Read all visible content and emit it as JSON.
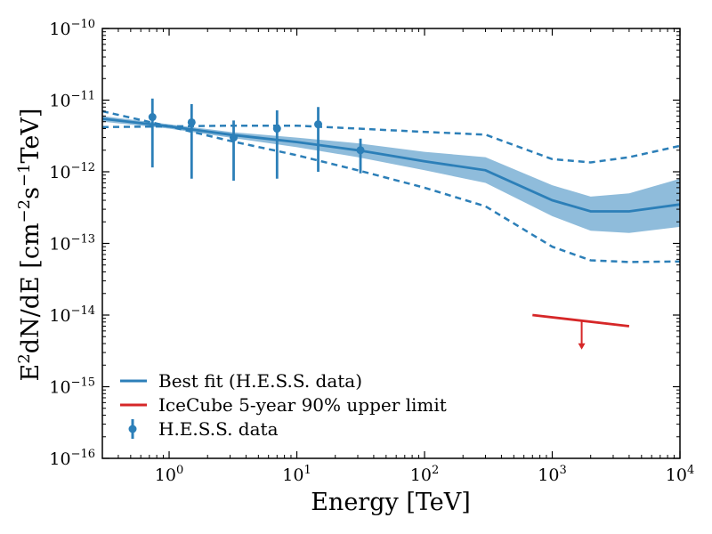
{
  "chart_data": {
    "type": "line",
    "title": "",
    "xlabel": "Energy [TeV]",
    "ylabel_parts": [
      "E",
      "2",
      "dN/dE [cm",
      "−2",
      "s",
      "−1",
      "TeV]"
    ],
    "x_scale": "log",
    "y_scale": "log",
    "xlim": [
      0.3,
      10000
    ],
    "ylim": [
      1e-16,
      1e-10
    ],
    "x_ticks": [
      {
        "value": 1,
        "base": "10",
        "exp": "0"
      },
      {
        "value": 10,
        "base": "10",
        "exp": "1"
      },
      {
        "value": 100,
        "base": "10",
        "exp": "2"
      },
      {
        "value": 1000,
        "base": "10",
        "exp": "3"
      },
      {
        "value": 10000,
        "base": "10",
        "exp": "4"
      }
    ],
    "y_ticks": [
      {
        "value": 1e-16,
        "base": "10",
        "exp": "−16"
      },
      {
        "value": 1e-15,
        "base": "10",
        "exp": "−15"
      },
      {
        "value": 1e-14,
        "base": "10",
        "exp": "−14"
      },
      {
        "value": 1e-13,
        "base": "10",
        "exp": "−13"
      },
      {
        "value": 1e-12,
        "base": "10",
        "exp": "−12"
      },
      {
        "value": 1e-11,
        "base": "10",
        "exp": "−11"
      },
      {
        "value": 1e-10,
        "base": "10",
        "exp": "−10"
      }
    ],
    "colors": {
      "blue": "#2c7fb8",
      "band": "#8fbcdb",
      "red": "#d62728"
    },
    "series": [
      {
        "name": "Best fit (H.E.S.S. data)",
        "kind": "line",
        "x": [
          0.3,
          1,
          3,
          10,
          30,
          100,
          300,
          1000,
          2000,
          4000,
          10000
        ],
        "y": [
          5.5e-12,
          4.3e-12,
          3.3e-12,
          2.6e-12,
          2e-12,
          1.4e-12,
          1.05e-12,
          4e-13,
          2.8e-13,
          2.8e-13,
          3.5e-13
        ]
      },
      {
        "name": "Confidence band",
        "kind": "band",
        "x": [
          0.3,
          1,
          3,
          10,
          30,
          100,
          300,
          1000,
          2000,
          4000,
          10000
        ],
        "upper": [
          6e-12,
          4.6e-12,
          3.6e-12,
          3e-12,
          2.5e-12,
          1.9e-12,
          1.6e-12,
          6.5e-13,
          4.5e-13,
          5e-13,
          8e-13
        ],
        "lower": [
          5e-12,
          4e-12,
          3e-12,
          2.2e-12,
          1.6e-12,
          1.05e-12,
          7e-13,
          2.4e-13,
          1.5e-13,
          1.4e-13,
          1.7e-13
        ]
      },
      {
        "name": "Upper envelope",
        "kind": "dashed",
        "x": [
          0.3,
          1,
          3,
          10,
          30,
          100,
          300,
          1000,
          2000,
          4000,
          10000
        ],
        "y": [
          4.2e-12,
          4.3e-12,
          4.4e-12,
          4.4e-12,
          4e-12,
          3.6e-12,
          3.3e-12,
          1.5e-12,
          1.35e-12,
          1.6e-12,
          2.3e-12
        ]
      },
      {
        "name": "Lower envelope",
        "kind": "dashed",
        "x": [
          0.3,
          1,
          3,
          10,
          30,
          100,
          300,
          1000,
          2000,
          4000,
          10000
        ],
        "y": [
          7e-12,
          4.3e-12,
          2.7e-12,
          1.7e-12,
          1.05e-12,
          6e-13,
          3.3e-13,
          9e-14,
          5.8e-14,
          5.5e-14,
          5.6e-14
        ]
      },
      {
        "name": "IceCube 5-year 90% upper limit",
        "kind": "upper_limit",
        "x": [
          700,
          4000
        ],
        "y": [
          1e-14,
          7e-15
        ],
        "arrow_at": {
          "x": 1700,
          "y_top": 8.2e-15,
          "y_bottom": 3.3e-15
        }
      },
      {
        "name": "H.E.S.S. data",
        "kind": "errorbar",
        "points": [
          {
            "x": 0.74,
            "y": 5.8e-12,
            "lo": 1.15e-12,
            "hi": 1.05e-11
          },
          {
            "x": 1.5,
            "y": 4.9e-12,
            "lo": 8e-13,
            "hi": 8.8e-12
          },
          {
            "x": 3.2,
            "y": 3e-12,
            "lo": 7.5e-13,
            "hi": 5.2e-12
          },
          {
            "x": 7.0,
            "y": 4e-12,
            "lo": 8e-13,
            "hi": 7.2e-12
          },
          {
            "x": 14.7,
            "y": 4.6e-12,
            "lo": 1e-12,
            "hi": 8e-12
          },
          {
            "x": 31.5,
            "y": 2e-12,
            "lo": 9.5e-13,
            "hi": 2.9e-12
          }
        ]
      }
    ],
    "legend": {
      "position": "lower-left",
      "entries": [
        {
          "label": "Best fit (H.E.S.S. data)",
          "marker": "line",
          "color": "#2c7fb8"
        },
        {
          "label": "IceCube 5-year 90% upper limit",
          "marker": "line",
          "color": "#d62728"
        },
        {
          "label": "H.E.S.S. data",
          "marker": "errorbar",
          "color": "#2c7fb8"
        }
      ]
    }
  }
}
